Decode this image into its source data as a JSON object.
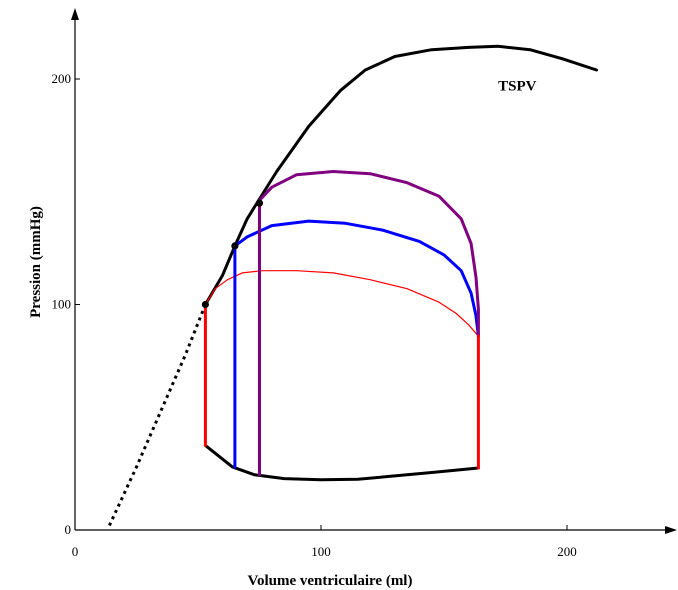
{
  "chart_data": {
    "type": "line",
    "title": "",
    "xlabel": "Volume ventriculaire (ml)",
    "ylabel": "Pression (mmHg)",
    "xlim": [
      0,
      245
    ],
    "ylim": [
      0,
      230
    ],
    "x_ticks": [
      0,
      100,
      200
    ],
    "y_ticks": [
      0,
      100,
      200
    ],
    "x_tick_labels": [
      "0",
      "100",
      "200"
    ],
    "y_tick_labels": [
      "0",
      "100",
      "200"
    ],
    "grid": false,
    "annotations": [
      {
        "text": "TSPV",
        "x": 172,
        "y": 195
      }
    ],
    "series": [
      {
        "id": "tspv",
        "color": "#000000",
        "width": 3,
        "points": [
          [
            53,
            100
          ],
          [
            60,
            113
          ],
          [
            65,
            126
          ],
          [
            70,
            138
          ],
          [
            74,
            145
          ],
          [
            82,
            159
          ],
          [
            95,
            179
          ],
          [
            108,
            195
          ],
          [
            118,
            204
          ],
          [
            130,
            210
          ],
          [
            145,
            213
          ],
          [
            160,
            214
          ],
          [
            172,
            214.5
          ],
          [
            185,
            213
          ],
          [
            198,
            209
          ],
          [
            212,
            204
          ]
        ]
      },
      {
        "id": "tspv-extrapolation",
        "color": "#000000",
        "width": 3,
        "dash": "3,4",
        "points": [
          [
            14,
            2
          ],
          [
            25,
            28
          ],
          [
            35,
            53
          ],
          [
            45,
            78
          ],
          [
            53,
            100
          ]
        ]
      },
      {
        "id": "filling-curve",
        "color": "#000000",
        "width": 3,
        "points": [
          [
            53,
            37.5
          ],
          [
            64,
            28
          ],
          [
            73,
            24.5
          ],
          [
            85,
            22.8
          ],
          [
            100,
            22.3
          ],
          [
            115,
            22.5
          ],
          [
            130,
            24
          ],
          [
            145,
            25.5
          ],
          [
            164,
            27.5
          ]
        ]
      },
      {
        "id": "loop-red-ejection",
        "color": "#ff0000",
        "width": 1.2,
        "points": [
          [
            53,
            100
          ],
          [
            57,
            107
          ],
          [
            62,
            111
          ],
          [
            68,
            114
          ],
          [
            76,
            115
          ],
          [
            90,
            115
          ],
          [
            105,
            114
          ],
          [
            120,
            111
          ],
          [
            135,
            107
          ],
          [
            148,
            101
          ],
          [
            155,
            96
          ],
          [
            160,
            91
          ],
          [
            164,
            86
          ]
        ]
      },
      {
        "id": "loop-blue-ejection",
        "color": "#0000ff",
        "width": 3,
        "points": [
          [
            65,
            126
          ],
          [
            70,
            130
          ],
          [
            80,
            135
          ],
          [
            95,
            137
          ],
          [
            110,
            136
          ],
          [
            125,
            133
          ],
          [
            140,
            128
          ],
          [
            150,
            122
          ],
          [
            157,
            115
          ],
          [
            161,
            105
          ],
          [
            163,
            95
          ],
          [
            164,
            86
          ]
        ]
      },
      {
        "id": "loop-purple-ejection",
        "color": "#800080",
        "width": 3,
        "points": [
          [
            74,
            145
          ],
          [
            80,
            152
          ],
          [
            90,
            157.5
          ],
          [
            105,
            159
          ],
          [
            120,
            158
          ],
          [
            135,
            154
          ],
          [
            148,
            148
          ],
          [
            157,
            138
          ],
          [
            161,
            127
          ],
          [
            163,
            112
          ],
          [
            164,
            98
          ],
          [
            164,
            86
          ]
        ]
      },
      {
        "id": "red-isovolumic-contraction",
        "color": "#ff0000",
        "width": 3,
        "points": [
          [
            53,
            37.5
          ],
          [
            53,
            100
          ]
        ]
      },
      {
        "id": "blue-isovolumic-contraction",
        "color": "#0000ff",
        "width": 3,
        "points": [
          [
            65,
            27.8
          ],
          [
            65,
            126
          ]
        ]
      },
      {
        "id": "purple-isovolumic-contraction",
        "color": "#800080",
        "width": 3,
        "points": [
          [
            75,
            24.5
          ],
          [
            75,
            145
          ]
        ]
      },
      {
        "id": "red-isovolumic-relaxation",
        "color": "#ff0000",
        "width": 3,
        "points": [
          [
            164,
            86
          ],
          [
            164,
            27.5
          ]
        ]
      }
    ],
    "markers": [
      {
        "x": 53,
        "y": 100
      },
      {
        "x": 65,
        "y": 126
      },
      {
        "x": 75,
        "y": 145
      }
    ]
  }
}
